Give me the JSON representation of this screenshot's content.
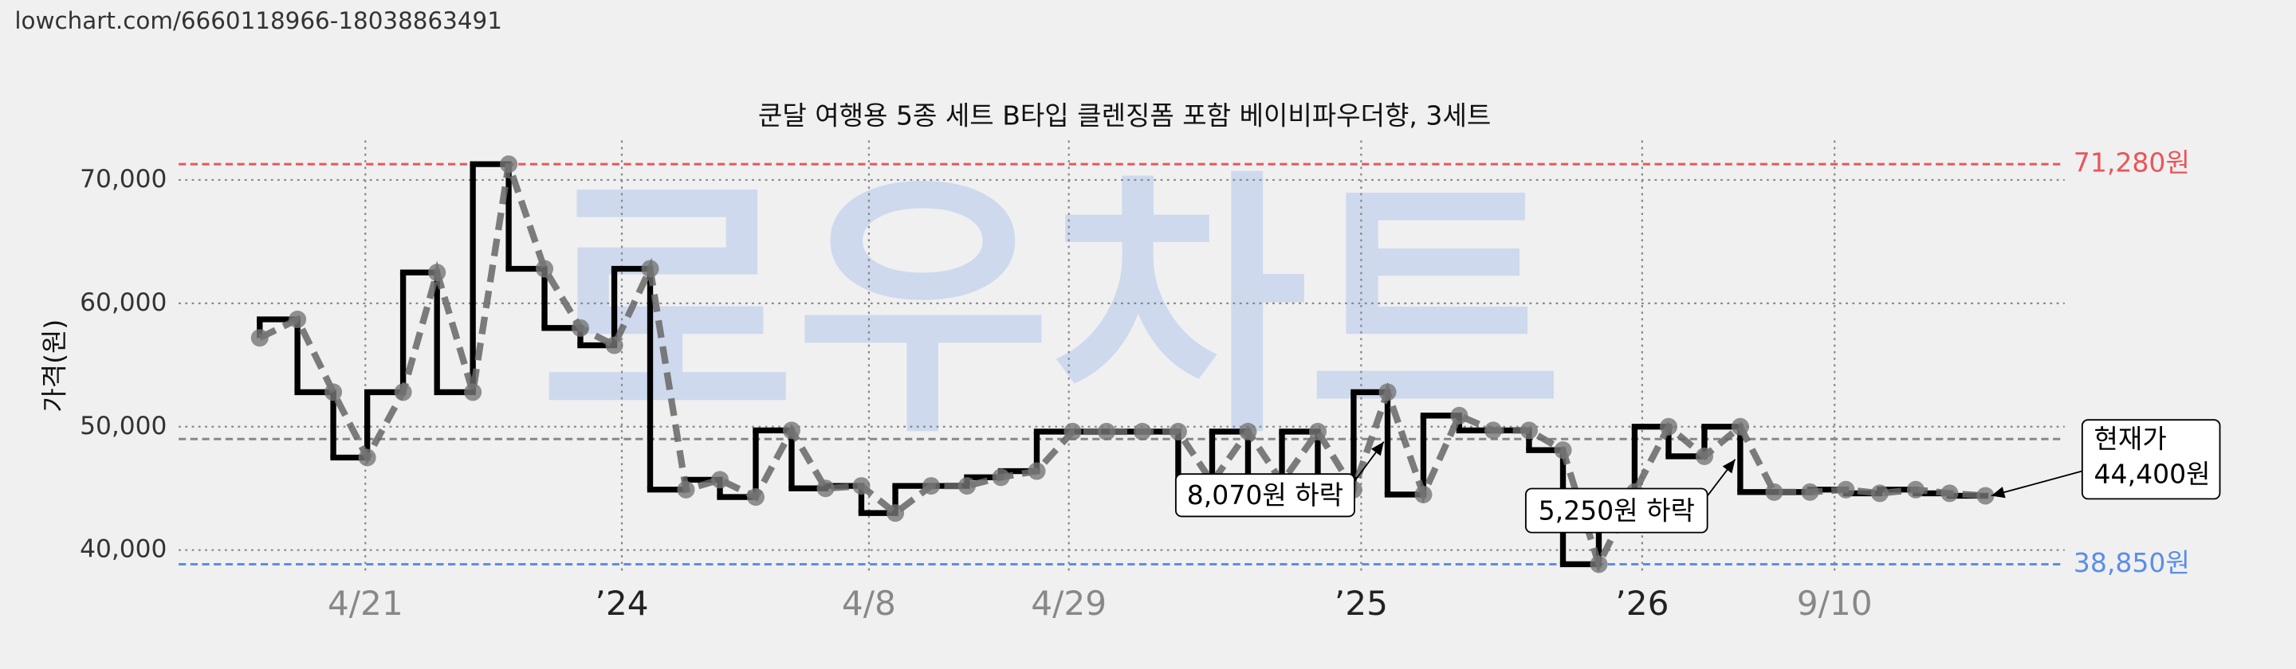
{
  "url": "lowchart.com/6660118966-18038863491",
  "chart_data": {
    "type": "line",
    "title": "쿤달 여행용 5종 세트 B타입 클렌징폼 포함 베이비파우더향, 3세트",
    "y_label": "가격(원)",
    "watermark": "로우차트",
    "x": [
      4.3,
      6.3,
      8.2,
      10.0,
      11.9,
      13.7,
      15.6,
      17.5,
      19.4,
      21.3,
      23.1,
      25.0,
      26.9,
      28.7,
      30.6,
      32.5,
      34.3,
      36.2,
      38.0,
      39.9,
      41.8,
      43.6,
      45.5,
      47.4,
      49.2,
      51.1,
      53.0,
      54.8,
      56.7,
      58.5,
      60.4,
      62.3,
      64.1,
      66.0,
      67.9,
      69.7,
      71.6,
      73.4,
      75.3,
      77.2,
      79.0,
      80.9,
      82.8,
      84.6,
      86.5,
      88.4,
      90.2,
      92.1,
      93.9,
      95.8
    ],
    "series": [
      {
        "color": "#000000",
        "values": [
          57200,
          58700,
          52800,
          47500,
          52800,
          62500,
          52800,
          71280,
          62800,
          58000,
          56600,
          62800,
          44900,
          45700,
          44300,
          49700,
          45000,
          45200,
          43000,
          45200,
          45200,
          45900,
          46400,
          49600,
          49600,
          49600,
          49600,
          45500,
          49600,
          45500,
          49600,
          44900,
          52800,
          44500,
          50900,
          49700,
          49700,
          48100,
          38850,
          44700,
          50000,
          47600,
          50000,
          44700,
          44700,
          44900,
          44600,
          44900,
          44600,
          44400
        ]
      }
    ],
    "xlim": [
      0,
      100
    ],
    "xticks": [
      {
        "value": 9.9,
        "label": "4/21"
      },
      {
        "value": 23.5,
        "label": "’24"
      },
      {
        "value": 36.6,
        "label": "4/8"
      },
      {
        "value": 47.2,
        "label": "4/29"
      },
      {
        "value": 62.7,
        "label": "’25"
      },
      {
        "value": 77.6,
        "label": "’26"
      },
      {
        "value": 87.8,
        "label": "9/10"
      }
    ],
    "ylim": [
      37000,
      72800
    ],
    "yticks": [
      {
        "value": 40000,
        "label": "40,000"
      },
      {
        "value": 50000,
        "label": "50,000"
      },
      {
        "value": 60000,
        "label": "60,000"
      },
      {
        "value": 70000,
        "label": "70,000"
      }
    ],
    "grid": true,
    "reference_lines": [
      {
        "value": 71280,
        "label": "71,280원",
        "color": "#e8555a"
      },
      {
        "value": 38850,
        "label": "38,850원",
        "color": "#5b8de8"
      },
      {
        "value": 49000,
        "color": "#888888"
      }
    ],
    "annotations": [
      "8,070원 하락",
      "5,250원 하락"
    ],
    "current_price": [
      "현재가",
      "44,400원"
    ]
  }
}
